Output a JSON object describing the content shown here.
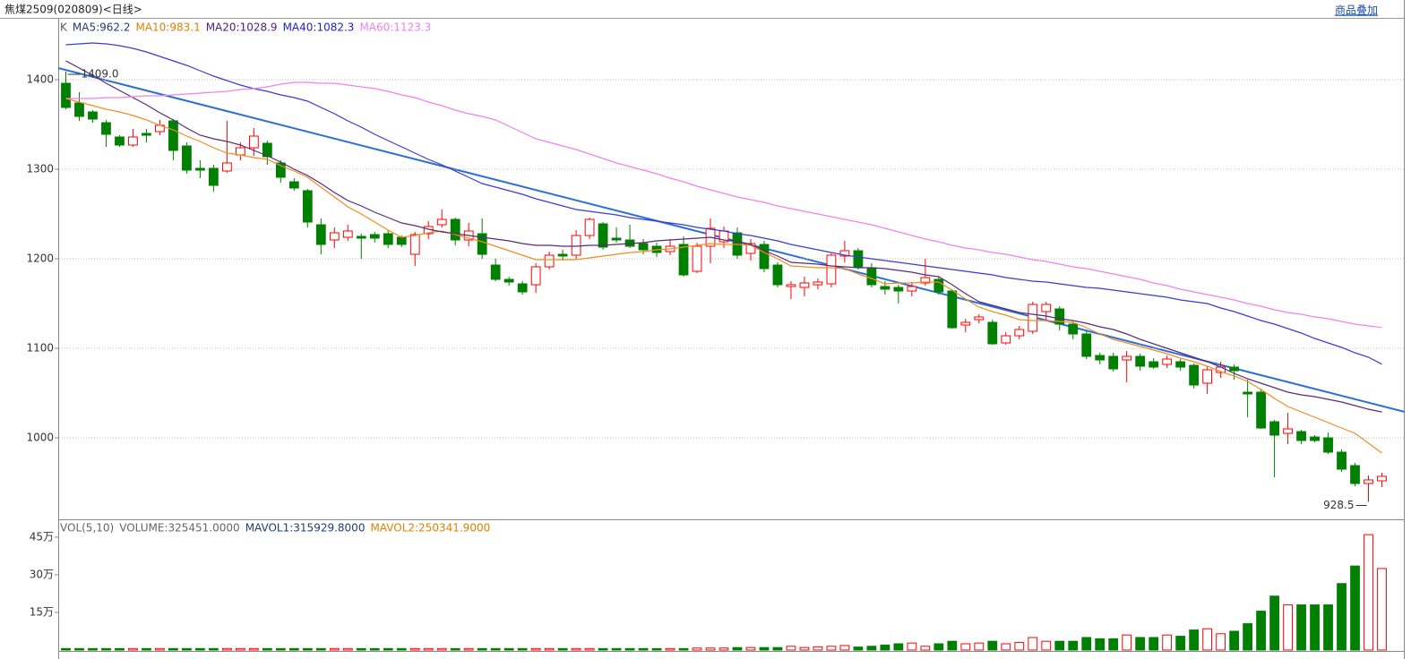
{
  "header": {
    "title": "焦煤2509(020809)<日线>",
    "overlay_button": "商品叠加"
  },
  "chart_data": [
    {
      "type": "candlestick",
      "legend": [
        {
          "text": "K",
          "color": "#555555"
        },
        {
          "text": "MA5:962.2",
          "color": "#1f3f6f"
        },
        {
          "text": "MA10:983.1",
          "color": "#e08000"
        },
        {
          "text": "MA20:1028.9",
          "color": "#4b1f8a"
        },
        {
          "text": "MA40:1082.3",
          "color": "#2020d0"
        },
        {
          "text": "MA60:1123.3",
          "color": "#ee82ee"
        }
      ],
      "up_color": "#ff0000",
      "down_color": "#008000",
      "grid": true,
      "ylim": [
        911,
        1467
      ],
      "yticks": [
        1000,
        1100,
        1200,
        1300,
        1400
      ],
      "annotations": [
        {
          "value": 1409,
          "label": "1409.0"
        },
        {
          "value": 928.5,
          "label": "928.5"
        }
      ],
      "open": [
        1396,
        1374,
        1364,
        1352,
        1336,
        1327,
        1340,
        1342,
        1354,
        1326,
        1301,
        1301,
        1298,
        1316,
        1324,
        1329,
        1307,
        1286,
        1276,
        1238,
        1221,
        1224,
        1225,
        1227,
        1228,
        1224,
        1205,
        1228,
        1238,
        1244,
        1221,
        1228,
        1193,
        1177,
        1172,
        1171,
        1191,
        1205,
        1204,
        1226,
        1239,
        1223,
        1221,
        1217,
        1214,
        1208,
        1216,
        1186,
        1214,
        1219,
        1229,
        1206,
        1216,
        1193,
        1169,
        1168,
        1171,
        1172,
        1203,
        1209,
        1190,
        1169,
        1168,
        1164,
        1173,
        1177,
        1164,
        1126,
        1132,
        1129,
        1106,
        1114,
        1119,
        1141,
        1144,
        1127,
        1116,
        1092,
        1091,
        1087,
        1091,
        1085,
        1082,
        1085,
        1081,
        1061,
        1073,
        1079,
        1051,
        1051,
        1018,
        1005,
        1007,
        1001,
        1000,
        984,
        969,
        949,
        952
      ],
      "high": [
        1409,
        1386,
        1366,
        1355,
        1338,
        1345,
        1345,
        1355,
        1356,
        1330,
        1310,
        1305,
        1354,
        1330,
        1346,
        1332,
        1310,
        1290,
        1278,
        1245,
        1235,
        1238,
        1228,
        1230,
        1232,
        1226,
        1230,
        1242,
        1255,
        1246,
        1240,
        1245,
        1200,
        1180,
        1175,
        1195,
        1208,
        1210,
        1232,
        1246,
        1241,
        1235,
        1238,
        1222,
        1218,
        1222,
        1225,
        1218,
        1245,
        1236,
        1235,
        1222,
        1220,
        1196,
        1175,
        1180,
        1178,
        1206,
        1220,
        1212,
        1195,
        1175,
        1171,
        1174,
        1200,
        1180,
        1166,
        1133,
        1138,
        1132,
        1118,
        1125,
        1152,
        1152,
        1147,
        1130,
        1120,
        1095,
        1095,
        1097,
        1094,
        1089,
        1092,
        1088,
        1083,
        1080,
        1085,
        1082,
        1065,
        1055,
        1020,
        1028,
        1009,
        1003,
        1006,
        987,
        972,
        958,
        961
      ],
      "low": [
        1367,
        1354,
        1352,
        1325,
        1325,
        1325,
        1330,
        1338,
        1310,
        1295,
        1290,
        1275,
        1296,
        1310,
        1315,
        1305,
        1285,
        1276,
        1235,
        1205,
        1212,
        1220,
        1200,
        1218,
        1212,
        1213,
        1192,
        1222,
        1235,
        1215,
        1214,
        1200,
        1175,
        1170,
        1160,
        1162,
        1188,
        1198,
        1200,
        1222,
        1210,
        1218,
        1212,
        1205,
        1202,
        1204,
        1180,
        1184,
        1195,
        1212,
        1200,
        1198,
        1185,
        1168,
        1155,
        1158,
        1166,
        1168,
        1196,
        1188,
        1168,
        1160,
        1150,
        1158,
        1170,
        1160,
        1122,
        1118,
        1128,
        1104,
        1104,
        1110,
        1116,
        1130,
        1120,
        1110,
        1088,
        1082,
        1074,
        1062,
        1075,
        1077,
        1078,
        1075,
        1055,
        1049,
        1067,
        1065,
        1023,
        1010,
        956,
        993,
        993,
        995,
        982,
        962,
        946,
        928.5,
        945
      ],
      "close": [
        1369,
        1359,
        1356,
        1339,
        1327,
        1336,
        1338,
        1349,
        1321,
        1299,
        1299,
        1282,
        1307,
        1324,
        1337,
        1314,
        1291,
        1279,
        1241,
        1216,
        1229,
        1231,
        1223,
        1223,
        1216,
        1216,
        1227,
        1236,
        1244,
        1221,
        1231,
        1205,
        1177,
        1174,
        1163,
        1191,
        1204,
        1203,
        1226,
        1244,
        1213,
        1221,
        1214,
        1210,
        1207,
        1214,
        1182,
        1214,
        1234,
        1231,
        1204,
        1217,
        1189,
        1171,
        1171,
        1173,
        1174,
        1204,
        1209,
        1191,
        1171,
        1166,
        1164,
        1169,
        1179,
        1163,
        1123,
        1129,
        1135,
        1105,
        1114,
        1121,
        1149,
        1149,
        1127,
        1116,
        1091,
        1087,
        1077,
        1091,
        1080,
        1079,
        1088,
        1079,
        1059,
        1076,
        1079,
        1075,
        1049,
        1011,
        1003,
        1010,
        997,
        997,
        984,
        965,
        949,
        953,
        957
      ],
      "series": [
        {
          "color": "#f28c1e",
          "values": [
            1379,
            1375,
            1371,
            1367,
            1364,
            1360,
            1355,
            1349,
            1344,
            1337,
            1331,
            1324,
            1318,
            1316,
            1313,
            1311,
            1304,
            1298,
            1291,
            1280,
            1269,
            1258,
            1250,
            1241,
            1232,
            1224,
            1226,
            1229,
            1231,
            1227,
            1223,
            1219,
            1214,
            1209,
            1204,
            1199,
            1199,
            1199,
            1199,
            1201,
            1203,
            1205,
            1207,
            1208,
            1210,
            1211,
            1213,
            1215,
            1217,
            1216,
            1216,
            1215,
            1207,
            1200,
            1192,
            1191,
            1190,
            1190,
            1189,
            1183,
            1178,
            1172,
            1173,
            1173,
            1174,
            1174,
            1165,
            1155,
            1146,
            1141,
            1137,
            1132,
            1131,
            1131,
            1130,
            1129,
            1123,
            1116,
            1110,
            1106,
            1102,
            1098,
            1094,
            1089,
            1085,
            1080,
            1074,
            1069,
            1063,
            1054,
            1044,
            1035,
            1029,
            1023,
            1017,
            1011,
            1005,
            994,
            983.1
          ]
        },
        {
          "color": "#5a2a7a",
          "values": [
            1421,
            1413,
            1405,
            1396,
            1388,
            1380,
            1372,
            1363,
            1355,
            1346,
            1338,
            1334,
            1331,
            1327,
            1321,
            1315,
            1308,
            1300,
            1293,
            1284,
            1274,
            1265,
            1259,
            1252,
            1246,
            1240,
            1237,
            1233,
            1230,
            1228,
            1226,
            1224,
            1222,
            1220,
            1217,
            1215,
            1215,
            1214,
            1214,
            1215,
            1215,
            1216,
            1217,
            1218,
            1220,
            1221,
            1222,
            1223,
            1224,
            1221,
            1219,
            1216,
            1209,
            1203,
            1196,
            1195,
            1194,
            1192,
            1191,
            1190,
            1190,
            1189,
            1187,
            1185,
            1182,
            1180,
            1171,
            1161,
            1152,
            1148,
            1144,
            1140,
            1138,
            1136,
            1133,
            1131,
            1128,
            1124,
            1121,
            1116,
            1110,
            1105,
            1100,
            1095,
            1090,
            1085,
            1079,
            1072,
            1066,
            1061,
            1056,
            1051,
            1048,
            1046,
            1043,
            1040,
            1036,
            1032,
            1028.9
          ]
        },
        {
          "color": "#3a3ad8",
          "values": [
            1439,
            1440,
            1441,
            1440,
            1438,
            1435,
            1431,
            1426,
            1421,
            1416,
            1410,
            1404,
            1399,
            1394,
            1390,
            1387,
            1383,
            1380,
            1376,
            1369,
            1362,
            1354,
            1347,
            1339,
            1332,
            1325,
            1318,
            1311,
            1305,
            1298,
            1291,
            1284,
            1280,
            1276,
            1272,
            1267,
            1263,
            1259,
            1255,
            1253,
            1251,
            1249,
            1246,
            1244,
            1242,
            1240,
            1238,
            1235,
            1233,
            1231,
            1228,
            1226,
            1223,
            1220,
            1216,
            1213,
            1210,
            1207,
            1204,
            1202,
            1200,
            1198,
            1196,
            1194,
            1192,
            1190,
            1188,
            1186,
            1184,
            1182,
            1179,
            1177,
            1175,
            1174,
            1172,
            1170,
            1168,
            1167,
            1165,
            1163,
            1161,
            1159,
            1157,
            1154,
            1152,
            1150,
            1145,
            1141,
            1136,
            1131,
            1127,
            1122,
            1117,
            1111,
            1106,
            1101,
            1095,
            1090,
            1082.3
          ]
        },
        {
          "color": "#ee82ee",
          "values": [
            1379,
            1379,
            1379,
            1380,
            1380,
            1381,
            1382,
            1382,
            1383,
            1384,
            1385,
            1386,
            1387,
            1389,
            1390,
            1392,
            1395,
            1397,
            1397,
            1396,
            1396,
            1394,
            1392,
            1390,
            1387,
            1383,
            1380,
            1375,
            1371,
            1366,
            1362,
            1359,
            1355,
            1348,
            1341,
            1334,
            1330,
            1326,
            1322,
            1317,
            1312,
            1307,
            1303,
            1299,
            1295,
            1290,
            1286,
            1281,
            1277,
            1273,
            1269,
            1266,
            1263,
            1259,
            1256,
            1253,
            1250,
            1247,
            1244,
            1241,
            1238,
            1234,
            1230,
            1226,
            1222,
            1219,
            1215,
            1212,
            1210,
            1207,
            1205,
            1202,
            1199,
            1197,
            1194,
            1191,
            1189,
            1186,
            1183,
            1180,
            1177,
            1173,
            1170,
            1166,
            1163,
            1160,
            1157,
            1154,
            1150,
            1147,
            1143,
            1140,
            1138,
            1135,
            1133,
            1130,
            1127,
            1125,
            1123.3
          ]
        }
      ]
    },
    {
      "type": "bar",
      "legend": [
        {
          "text": "VOL(5,10)",
          "color": "#666666"
        },
        {
          "text": "VOLUME:325451.0000",
          "color": "#666666"
        },
        {
          "text": "MAVOL1:315929.8000",
          "color": "#1f3f6f"
        },
        {
          "text": "MAVOL2:250341.9000",
          "color": "#e08000"
        }
      ],
      "ylim": [
        0,
        51.4
      ],
      "yticks": [
        {
          "value": 15,
          "label": "15万"
        },
        {
          "value": 30,
          "label": "30万"
        },
        {
          "value": 45,
          "label": "45万"
        }
      ],
      "values": [
        0.6,
        0.6,
        0.6,
        0.6,
        0.6,
        0.6,
        0.6,
        0.6,
        0.6,
        0.6,
        0.6,
        0.6,
        0.6,
        0.6,
        0.6,
        0.6,
        0.6,
        0.6,
        0.6,
        0.6,
        0.6,
        0.6,
        0.6,
        0.6,
        0.6,
        0.6,
        0.6,
        0.6,
        0.6,
        0.6,
        0.6,
        0.6,
        0.6,
        0.6,
        0.6,
        0.6,
        0.6,
        0.6,
        0.6,
        0.6,
        0.6,
        0.6,
        0.6,
        0.6,
        0.6,
        0.6,
        0.6,
        0.8,
        0.8,
        0.8,
        1,
        1,
        1,
        1,
        1.5,
        1,
        1.3,
        1.5,
        1.8,
        1.2,
        1.5,
        2,
        2.5,
        2.8,
        1.5,
        2.5,
        3.5,
        2.5,
        2.8,
        3.5,
        2.5,
        3,
        5,
        3.5,
        3.5,
        3.5,
        5,
        4.5,
        4.5,
        6,
        5,
        5,
        6,
        5.5,
        8,
        8.5,
        6.5,
        7.5,
        10.5,
        15.5,
        21.5,
        18,
        18,
        18,
        18,
        26.5,
        33.5,
        46,
        32.5
      ]
    }
  ]
}
